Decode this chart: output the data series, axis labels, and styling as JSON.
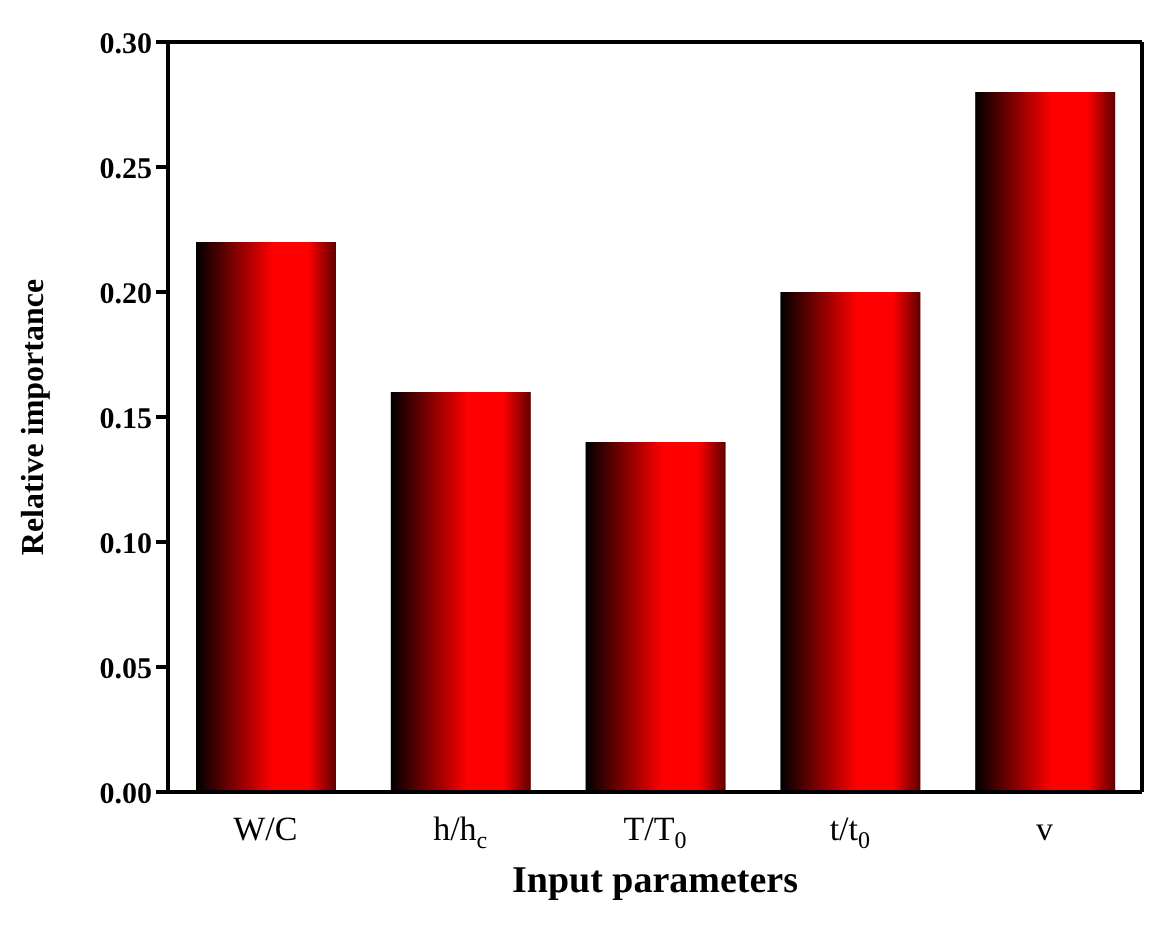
{
  "chart_data": {
    "type": "bar",
    "xlabel": "Input parameters",
    "ylabel": "Relative importance",
    "categories": [
      "W/C",
      "h/h$_{c}$",
      "T/T$_{0}$",
      "t/t$_{0}$",
      "v"
    ],
    "values": [
      0.22,
      0.16,
      0.14,
      0.2,
      0.28
    ],
    "color": "#ff0000",
    "ylim": [
      0,
      0.3
    ],
    "yticks": [
      {
        "value": 0,
        "label": "0.00"
      },
      {
        "value": 0.05,
        "label": "0.05"
      },
      {
        "value": 0.1,
        "label": "0.10"
      },
      {
        "value": 0.15,
        "label": "0.15"
      },
      {
        "value": 0.2,
        "label": "0.20"
      },
      {
        "value": 0.25,
        "label": "0.25"
      },
      {
        "value": 0.3,
        "label": "0.30"
      }
    ],
    "grid": false,
    "legend": false
  }
}
